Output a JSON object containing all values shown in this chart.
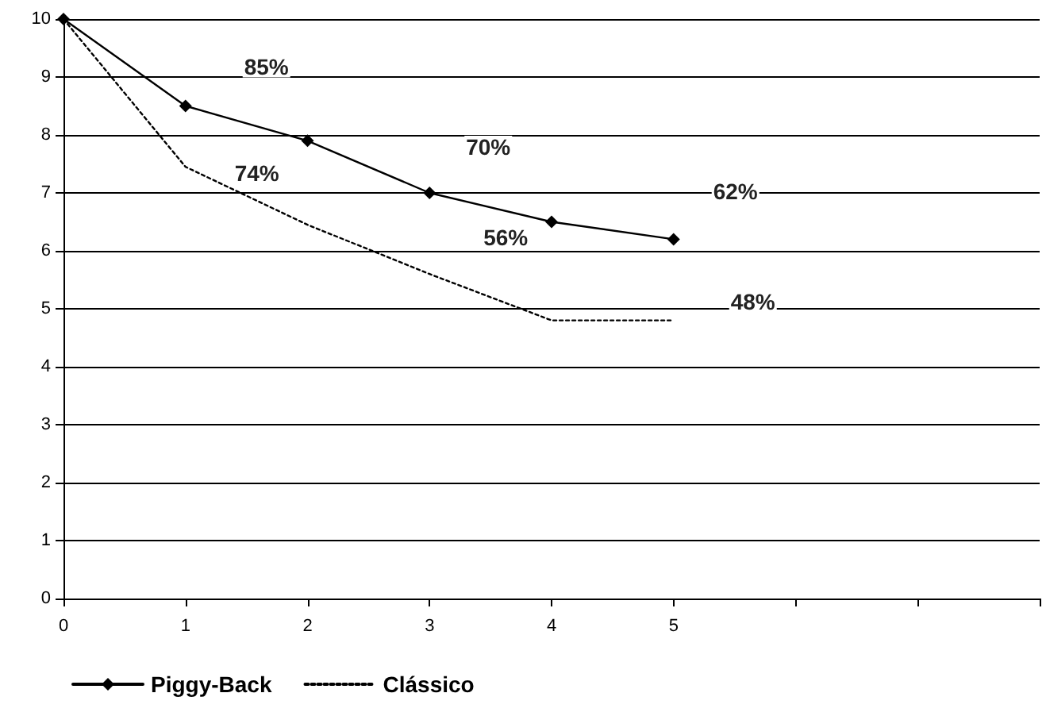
{
  "chart_data": {
    "type": "line",
    "categories": [
      "0",
      "1",
      "2",
      "3",
      "4",
      "5",
      null,
      null,
      null
    ],
    "series": [
      {
        "name": "Piggy-Back",
        "color": "#000000",
        "marker": "diamond",
        "line_style": "solid",
        "values": [
          10,
          8.5,
          7.9,
          7.0,
          6.5,
          6.2,
          null,
          null,
          null
        ]
      },
      {
        "name": "Clássico",
        "color": "#000000",
        "marker": "none",
        "line_style": "dotted",
        "values": [
          10,
          7.45,
          6.45,
          5.6,
          4.8,
          4.8,
          null,
          null,
          null
        ]
      }
    ],
    "annotations": [
      {
        "text": "85%",
        "x": "1",
        "y": 8.5
      },
      {
        "text": "70%",
        "x": "3",
        "y": 7.0
      },
      {
        "text": "62%",
        "x": "5",
        "y": 6.2
      },
      {
        "text": "74%",
        "x": "1",
        "y": 7.45
      },
      {
        "text": "56%",
        "x": "3",
        "y": 5.6
      },
      {
        "text": "48%",
        "x": "5",
        "y": 4.8
      }
    ],
    "ylim": [
      0,
      10
    ],
    "yticks": [
      0,
      1,
      2,
      3,
      4,
      5,
      6,
      7,
      8,
      9,
      10
    ],
    "grid": "y",
    "legend": "bottom"
  }
}
